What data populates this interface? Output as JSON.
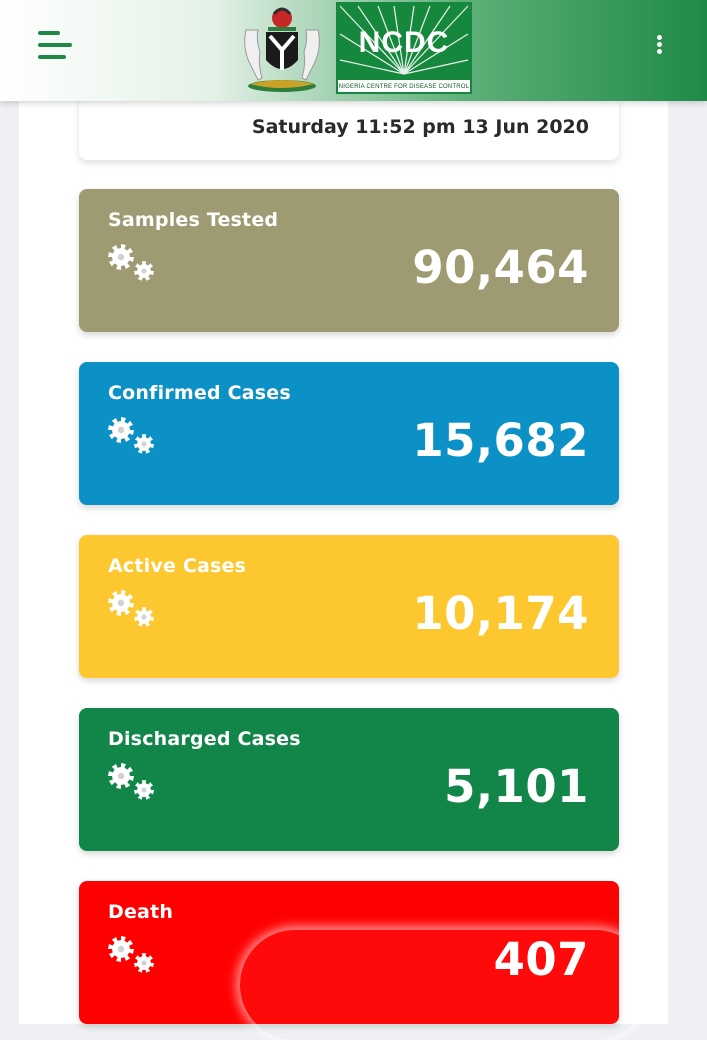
{
  "header": {
    "menu_icon": "hamburger-menu-icon",
    "coat_of_arms": "nigeria-coat-of-arms",
    "logo_text": "NCDC",
    "logo_subtitle": "NIGERIA CENTRE FOR DISEASE CONTROL",
    "more_icon": "kebab-menu-icon"
  },
  "updated": {
    "datetime": "Saturday 11:52 pm 13 Jun 2020"
  },
  "stats": [
    {
      "label": "Samples Tested",
      "value": "90,464",
      "color": "#9e9a72"
    },
    {
      "label": "Confirmed Cases",
      "value": "15,682",
      "color": "#0b91c5"
    },
    {
      "label": "Active Cases",
      "value": "10,174",
      "color": "#fdc82f"
    },
    {
      "label": "Discharged Cases",
      "value": "5,101",
      "color": "#128548"
    },
    {
      "label": "Death",
      "value": "407",
      "color": "#ff0000"
    }
  ],
  "colors": {
    "brand_green": "#1f8a48"
  }
}
